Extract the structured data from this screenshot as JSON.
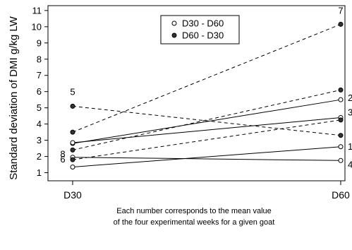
{
  "chart_data": {
    "type": "line",
    "ylabel": "Standard deviation of DMI g/kg LW",
    "x_categories": [
      "D30",
      "D60"
    ],
    "ylim": [
      0.5,
      11.3
    ],
    "yticks": [
      1,
      2,
      3,
      4,
      5,
      6,
      7,
      8,
      9,
      10,
      11
    ],
    "caption": [
      "Each number corresponds to the mean value",
      "of the four experimental weeks for a given goat"
    ],
    "legend": {
      "position": "top-center",
      "entries": [
        {
          "label": "D30 - D60",
          "marker": "open-circle",
          "line": "solid"
        },
        {
          "label": "D60 - D30",
          "marker": "filled-circle",
          "line": "dashed"
        }
      ]
    },
    "series": [
      {
        "goat": "1",
        "group": "D30 - D60",
        "values": [
          1.35,
          2.6
        ]
      },
      {
        "goat": "2",
        "group": "D30 - D60",
        "values": [
          2.8,
          5.5
        ]
      },
      {
        "goat": "3",
        "group": "D30 - D60",
        "values": [
          2.85,
          4.4
        ]
      },
      {
        "goat": "4",
        "group": "D30 - D60",
        "values": [
          1.95,
          1.75
        ]
      },
      {
        "goat": "5",
        "group": "D60 - D30",
        "values": [
          5.1,
          3.3
        ]
      },
      {
        "goat": "6",
        "group": "D60 - D30",
        "values": [
          1.8,
          4.25
        ]
      },
      {
        "goat": "7",
        "group": "D60 - D30",
        "values": [
          3.5,
          10.15
        ]
      },
      {
        "goat": "8",
        "group": "D60 - D30",
        "values": [
          2.4,
          6.1
        ]
      }
    ],
    "point_labels": [
      {
        "text": "1",
        "at": "D60"
      },
      {
        "text": "2",
        "at": "D60"
      },
      {
        "text": "3",
        "at": "D60"
      },
      {
        "text": "4",
        "at": "D60"
      },
      {
        "text": "5",
        "at": "D30"
      },
      {
        "text": "6",
        "at": "D30"
      },
      {
        "text": "7",
        "at": "D60"
      },
      {
        "text": "8",
        "at": "D30"
      }
    ]
  }
}
